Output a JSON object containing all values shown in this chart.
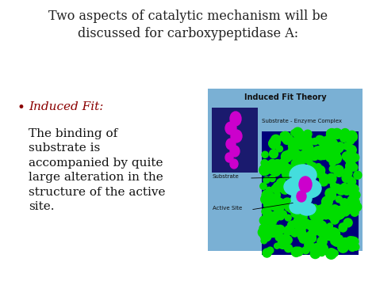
{
  "title_line1": "Two aspects of catalytic mechanism will be",
  "title_line2": "discussed for carboxypeptidase A:",
  "bullet_text": "Induced Fit:",
  "body_text_lines": [
    "The binding of",
    "substrate is",
    "accompanied by quite",
    "large alteration in the",
    "structure of the active",
    "site."
  ],
  "background_color": "#ffffff",
  "title_color": "#222222",
  "bullet_color": "#8b0000",
  "body_color": "#111111",
  "bullet_dot_color": "#8b0000",
  "image_box_bg": "#7ab0d4",
  "image_title": "Induced Fit Theory",
  "image_label1": "Substrate - Enzyme Complex",
  "image_label2": "Substrate",
  "image_label3": "Active Site",
  "title_fontsize": 11.5,
  "bullet_fontsize": 11,
  "body_fontsize": 11,
  "fig_w": 4.74,
  "fig_h": 3.55,
  "dpi": 100
}
